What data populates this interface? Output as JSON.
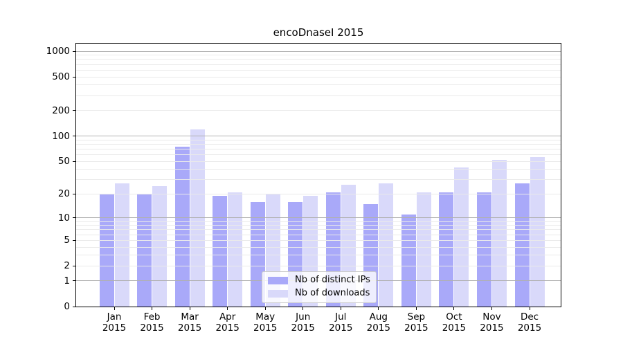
{
  "chart_data": {
    "type": "bar",
    "title": "encoDnaseI 2015",
    "x_axis": {
      "months": [
        "Jan",
        "Feb",
        "Mar",
        "Apr",
        "May",
        "Jun",
        "Jul",
        "Aug",
        "Sep",
        "Oct",
        "Nov",
        "Dec"
      ],
      "year": "2015"
    },
    "y_axis": {
      "ticks": [
        0,
        1,
        2,
        5,
        10,
        20,
        50,
        100,
        200,
        500,
        1000
      ],
      "max": 1230,
      "scale": "log10(value+1)"
    },
    "series": [
      {
        "name": "Nb of distinct IPs",
        "color": "#a9a9f9",
        "values": [
          20,
          20,
          74,
          19,
          16,
          16,
          21,
          15,
          11,
          21,
          21,
          27
        ]
      },
      {
        "name": "Nb of downloads",
        "color": "#d9d9fa",
        "values": [
          27,
          25,
          120,
          21,
          20,
          19,
          26,
          27,
          21,
          42,
          52,
          56
        ]
      }
    ],
    "grid": {
      "major_values": [
        1,
        10,
        100,
        1000
      ],
      "minor_subs": [
        2,
        3,
        4,
        5,
        6,
        7,
        8,
        9
      ],
      "major_color": "#b0b0b0",
      "minor_color": "#eaeaea",
      "legend_position": "lower-center"
    },
    "axis_color": "#000000"
  }
}
